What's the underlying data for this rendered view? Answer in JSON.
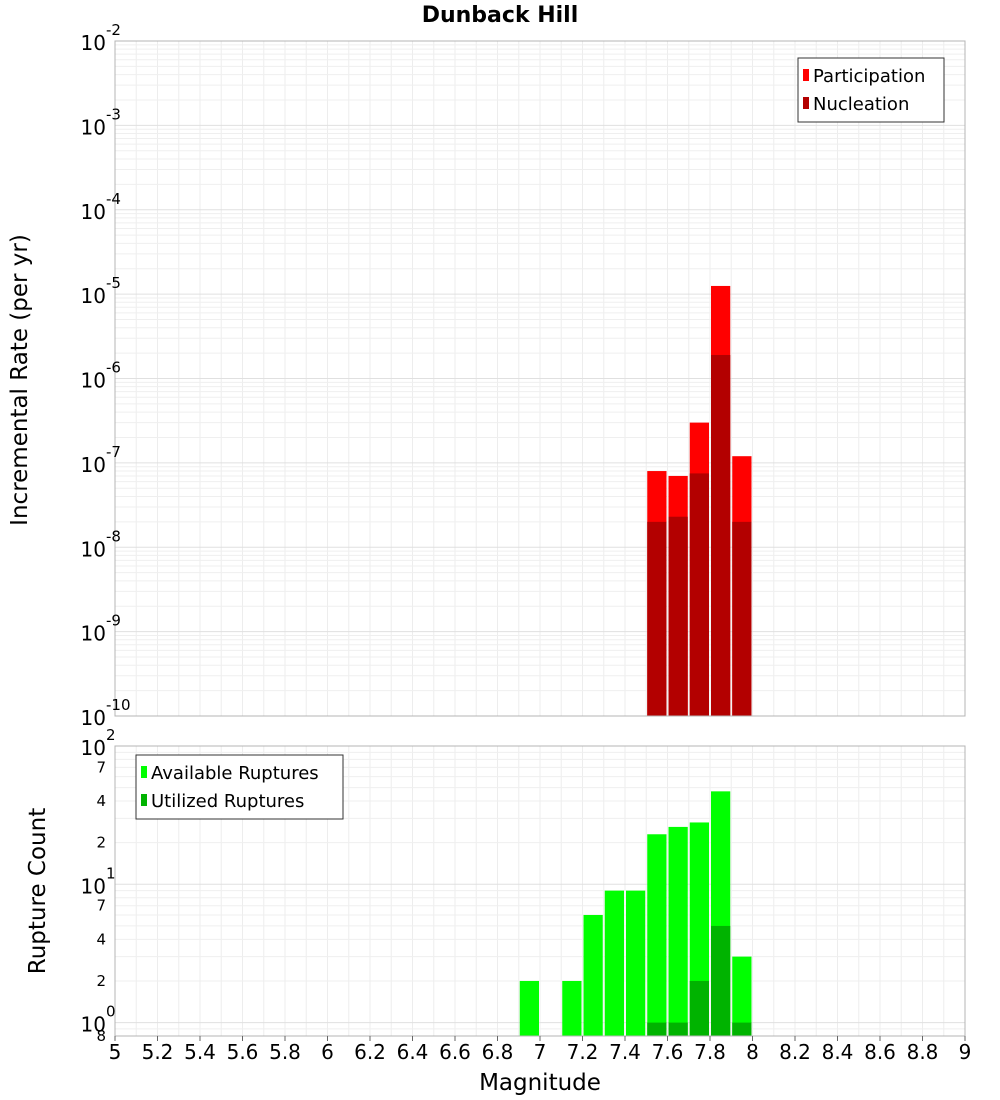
{
  "chart_data": [
    {
      "type": "bar",
      "title": "Dunback Hill",
      "ylabel": "Incremental Rate (per yr)",
      "xlabel": "",
      "yscale": "log",
      "ylim": [
        1e-10,
        0.01
      ],
      "xlim": [
        5,
        9
      ],
      "bar_width": 0.1,
      "grid": true,
      "legend_position": "top-right",
      "y_tick_labels": [
        {
          "base": "10",
          "exp": "-2"
        },
        {
          "base": "10",
          "exp": "-3"
        },
        {
          "base": "10",
          "exp": "-4"
        },
        {
          "base": "10",
          "exp": "-5"
        },
        {
          "base": "10",
          "exp": "-6"
        },
        {
          "base": "10",
          "exp": "-7"
        },
        {
          "base": "10",
          "exp": "-8"
        },
        {
          "base": "10",
          "exp": "-9"
        },
        {
          "base": "10",
          "exp": "-10"
        }
      ],
      "series": [
        {
          "name": "Participation",
          "color": "#ff0000",
          "x": [
            7.55,
            7.65,
            7.75,
            7.85,
            7.95
          ],
          "values": [
            8e-08,
            7e-08,
            3e-07,
            1.25e-05,
            1.2e-07
          ]
        },
        {
          "name": "Nucleation",
          "color": "#b30000",
          "x": [
            7.55,
            7.65,
            7.75,
            7.85,
            7.95
          ],
          "values": [
            2e-08,
            2.3e-08,
            7.5e-08,
            1.9e-06,
            2e-08
          ]
        }
      ]
    },
    {
      "type": "bar",
      "ylabel": "Rupture Count",
      "xlabel": "Magnitude",
      "yscale": "log",
      "ylim": [
        0.8,
        100
      ],
      "xlim": [
        5,
        9
      ],
      "bar_width": 0.1,
      "grid": true,
      "legend_position": "top-left",
      "y_tick_labels": [
        {
          "base": "10",
          "exp": "2"
        },
        {
          "base": "7",
          "exp": ""
        },
        {
          "base": "4",
          "exp": ""
        },
        {
          "base": "2",
          "exp": ""
        },
        {
          "base": "10",
          "exp": "1"
        },
        {
          "base": "7",
          "exp": ""
        },
        {
          "base": "4",
          "exp": ""
        },
        {
          "base": "2",
          "exp": ""
        },
        {
          "base": "10",
          "exp": "0"
        },
        {
          "base": "8",
          "exp": ""
        }
      ],
      "x_tick_labels": [
        "5",
        "5.2",
        "5.4",
        "5.6",
        "5.8",
        "6",
        "6.2",
        "6.4",
        "6.6",
        "6.8",
        "7",
        "7.2",
        "7.4",
        "7.6",
        "7.8",
        "8",
        "8.2",
        "8.4",
        "8.6",
        "8.8",
        "9"
      ],
      "series": [
        {
          "name": "Available Ruptures",
          "color": "#00ff00",
          "x": [
            6.95,
            7.15,
            7.25,
            7.35,
            7.45,
            7.55,
            7.65,
            7.75,
            7.85,
            7.95
          ],
          "values": [
            2,
            2,
            6,
            9,
            9,
            23,
            26,
            28,
            47,
            3
          ]
        },
        {
          "name": "Utilized Ruptures",
          "color": "#00b300",
          "x": [
            7.55,
            7.65,
            7.75,
            7.85,
            7.95
          ],
          "values": [
            1,
            1,
            2,
            5,
            1
          ]
        }
      ]
    }
  ]
}
